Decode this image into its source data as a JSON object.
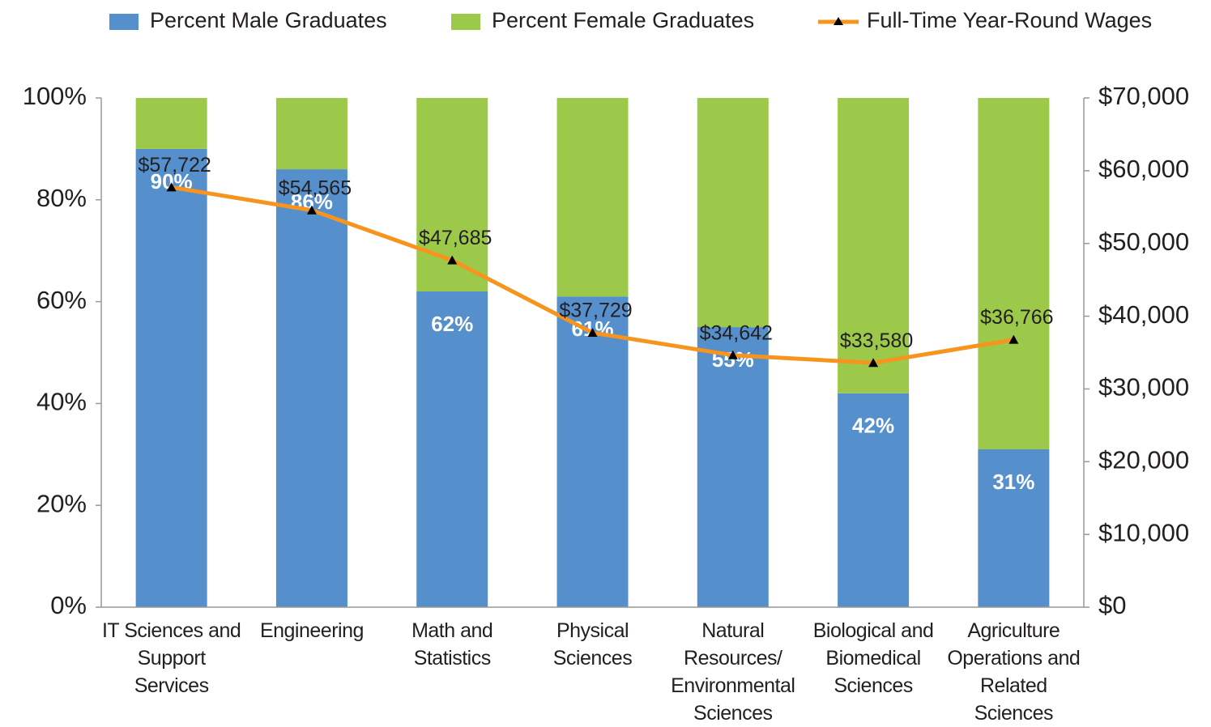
{
  "chart_data": {
    "type": "bar",
    "stacked": true,
    "categories": [
      "IT Sciences and Support Services",
      "Engineering",
      "Math and Statistics",
      "Physical Sciences",
      "Natural Resources/ Environmental Sciences",
      "Biological and Biomedical Sciences",
      "Agriculture Operations and Related Sciences"
    ],
    "series": [
      {
        "name": "Percent Male Graduates",
        "color": "#5590cc",
        "values": [
          90,
          86,
          62,
          61,
          55,
          42,
          31
        ],
        "value_labels": [
          "90%",
          "86%",
          "62%",
          "61%",
          "55%",
          "42%",
          "31%"
        ]
      },
      {
        "name": "Percent Female Graduates",
        "color": "#9dc94a",
        "values": [
          10,
          14,
          38,
          39,
          45,
          58,
          69
        ]
      },
      {
        "name": "Full-Time Year-Round Wages",
        "type": "line",
        "axis": "y2",
        "color": "#f7941d",
        "marker_color": "#000000",
        "values": [
          57722,
          54565,
          47685,
          37729,
          34642,
          33580,
          36766
        ],
        "value_labels": [
          "$57,722",
          "$54,565",
          "$47,685",
          "$37,729",
          "$34,642",
          "$33,580",
          "$36,766"
        ]
      }
    ],
    "ylim": [
      0,
      100
    ],
    "yticks": [
      {
        "value": 0,
        "label": "0%"
      },
      {
        "value": 20,
        "label": "20%"
      },
      {
        "value": 40,
        "label": "40%"
      },
      {
        "value": 60,
        "label": "60%"
      },
      {
        "value": 80,
        "label": "80%"
      },
      {
        "value": 100,
        "label": "100%"
      }
    ],
    "y2lim": [
      0,
      70000
    ],
    "y2ticks": [
      {
        "value": 0,
        "label": "$0"
      },
      {
        "value": 10000,
        "label": "$10,000"
      },
      {
        "value": 20000,
        "label": "$20,000"
      },
      {
        "value": 30000,
        "label": "$30,000"
      },
      {
        "value": 40000,
        "label": "$40,000"
      },
      {
        "value": 50000,
        "label": "$50,000"
      },
      {
        "value": 60000,
        "label": "$60,000"
      },
      {
        "value": 70000,
        "label": "$70,000"
      }
    ],
    "legend": "top",
    "grid": false
  }
}
